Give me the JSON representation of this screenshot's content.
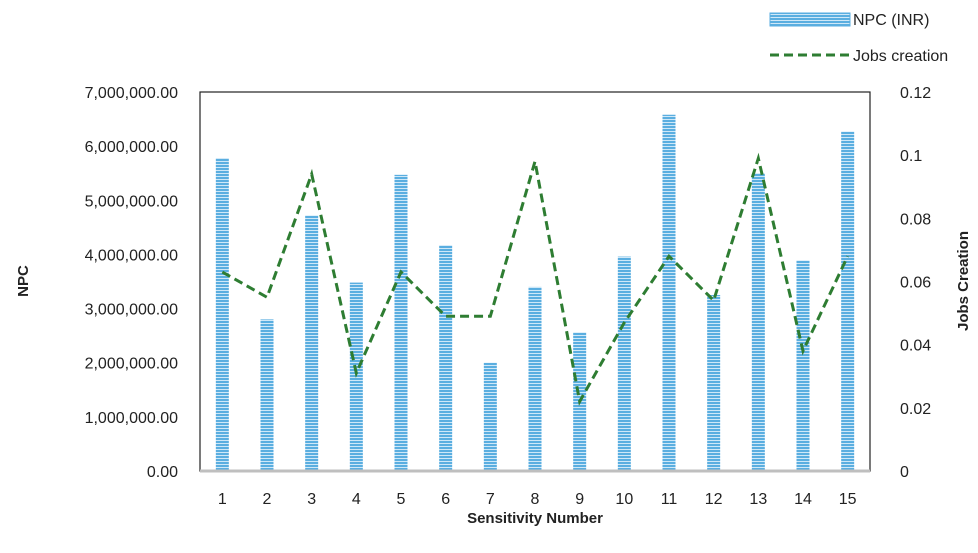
{
  "chart_data": {
    "type": "bar",
    "x": [
      "1",
      "2",
      "3",
      "4",
      "5",
      "6",
      "7",
      "8",
      "9",
      "10",
      "11",
      "12",
      "13",
      "14",
      "15"
    ],
    "xlabel": "Sensitivity Number",
    "ylabel": "NPC",
    "y2label": "Jobs Creation",
    "ylim": [
      0,
      7000000
    ],
    "y2lim": [
      0,
      0.12
    ],
    "yticks": [
      "0.00",
      "1,000,000.00",
      "2,000,000.00",
      "3,000,000.00",
      "4,000,000.00",
      "5,000,000.00",
      "6,000,000.00",
      "7,000,000.00"
    ],
    "y2ticks": [
      "0",
      "0.02",
      "0.04",
      "0.06",
      "0.08",
      "0.1",
      "0.12"
    ],
    "legend_position": "top-right",
    "grid": false,
    "series": [
      {
        "name": "NPC (INR)",
        "type": "bar",
        "axis": "left",
        "color": "#5aaee0",
        "values": [
          5780000,
          2800000,
          4720000,
          3480000,
          5470000,
          4170000,
          2000000,
          3400000,
          2560000,
          3960000,
          6580000,
          3250000,
          5500000,
          3890000,
          6270000
        ]
      },
      {
        "name": "Jobs creation",
        "type": "line",
        "axis": "right",
        "style": "dashed",
        "color": "#2e7d32",
        "values": [
          0.063,
          0.055,
          0.094,
          0.031,
          0.063,
          0.049,
          0.049,
          0.098,
          0.022,
          0.047,
          0.068,
          0.054,
          0.099,
          0.038,
          0.068
        ]
      }
    ]
  }
}
